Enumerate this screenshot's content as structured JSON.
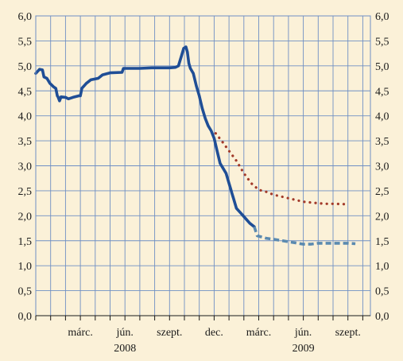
{
  "chart_data": {
    "type": "line",
    "x_range": [
      0,
      19.5
    ],
    "ylim": [
      0,
      6
    ],
    "y_ticks": [
      "0,0",
      "0,5",
      "1,0",
      "1,5",
      "2,0",
      "2,5",
      "3,0",
      "3,5",
      "4,0",
      "4,5",
      "5,0",
      "5,5",
      "6,0"
    ],
    "x_tick_labels": [
      {
        "x": 3,
        "label": "márc."
      },
      {
        "x": 6,
        "label": "jún."
      },
      {
        "x": 9,
        "label": "szept."
      },
      {
        "x": 12,
        "label": "dec."
      },
      {
        "x": 15,
        "label": "márc."
      },
      {
        "x": 18,
        "label": "jún."
      },
      {
        "x": 21,
        "label": "szept."
      }
    ],
    "year_labels": [
      {
        "x": 6,
        "label": "2008"
      },
      {
        "x": 18,
        "label": "2009"
      }
    ],
    "grid": true,
    "series": [
      {
        "style": "solid",
        "color": "#1f4e96",
        "points": [
          [
            0,
            4.85
          ],
          [
            0.25,
            4.93
          ],
          [
            0.45,
            4.92
          ],
          [
            0.55,
            4.78
          ],
          [
            0.75,
            4.75
          ],
          [
            0.95,
            4.65
          ],
          [
            1.2,
            4.58
          ],
          [
            1.35,
            4.55
          ],
          [
            1.45,
            4.4
          ],
          [
            1.5,
            4.38
          ],
          [
            1.6,
            4.3
          ],
          [
            1.7,
            4.38
          ],
          [
            2.0,
            4.37
          ],
          [
            2.2,
            4.34
          ],
          [
            2.5,
            4.37
          ],
          [
            2.9,
            4.4
          ],
          [
            3.0,
            4.4
          ],
          [
            3.1,
            4.55
          ],
          [
            3.4,
            4.65
          ],
          [
            3.7,
            4.72
          ],
          [
            4.2,
            4.75
          ],
          [
            4.5,
            4.82
          ],
          [
            5.0,
            4.86
          ],
          [
            5.8,
            4.87
          ],
          [
            5.9,
            4.95
          ],
          [
            7.0,
            4.95
          ],
          [
            7.8,
            4.96
          ],
          [
            8.5,
            4.96
          ],
          [
            9.0,
            4.96
          ],
          [
            9.4,
            4.97
          ],
          [
            9.6,
            5.0
          ],
          [
            9.8,
            5.2
          ],
          [
            9.95,
            5.35
          ],
          [
            10.1,
            5.38
          ],
          [
            10.2,
            5.28
          ],
          [
            10.3,
            5.05
          ],
          [
            10.4,
            4.95
          ],
          [
            10.6,
            4.85
          ],
          [
            10.8,
            4.6
          ],
          [
            11.0,
            4.4
          ],
          [
            11.2,
            4.15
          ],
          [
            11.4,
            3.95
          ],
          [
            11.6,
            3.8
          ],
          [
            11.8,
            3.7
          ],
          [
            12.0,
            3.55
          ],
          [
            12.2,
            3.3
          ],
          [
            12.4,
            3.05
          ],
          [
            12.6,
            2.95
          ],
          [
            12.8,
            2.85
          ],
          [
            13.0,
            2.65
          ],
          [
            13.1,
            2.55
          ],
          [
            13.2,
            2.45
          ],
          [
            13.3,
            2.35
          ],
          [
            13.5,
            2.15
          ],
          [
            13.8,
            2.05
          ],
          [
            14.1,
            1.95
          ],
          [
            14.4,
            1.85
          ],
          [
            14.7,
            1.78
          ]
        ]
      },
      {
        "style": "dashed",
        "color": "#5b8ab0",
        "points": [
          [
            14.7,
            1.78
          ],
          [
            14.9,
            1.6
          ],
          [
            15.5,
            1.55
          ],
          [
            16.0,
            1.53
          ],
          [
            17.0,
            1.48
          ],
          [
            18.0,
            1.43
          ],
          [
            18.5,
            1.43
          ],
          [
            19.0,
            1.45
          ],
          [
            20.0,
            1.45
          ],
          [
            21.0,
            1.45
          ],
          [
            21.5,
            1.44
          ]
        ]
      },
      {
        "style": "dotted",
        "color": "#a23a2a",
        "points": [
          [
            12.1,
            3.65
          ],
          [
            12.5,
            3.5
          ],
          [
            13.0,
            3.3
          ],
          [
            13.5,
            3.1
          ],
          [
            14.0,
            2.85
          ],
          [
            14.5,
            2.65
          ],
          [
            15.0,
            2.52
          ],
          [
            15.5,
            2.48
          ],
          [
            16.0,
            2.42
          ],
          [
            17.0,
            2.35
          ],
          [
            18.0,
            2.28
          ],
          [
            19.0,
            2.25
          ],
          [
            19.5,
            2.24
          ],
          [
            20.0,
            2.24
          ],
          [
            21.0,
            2.23
          ]
        ]
      }
    ]
  }
}
